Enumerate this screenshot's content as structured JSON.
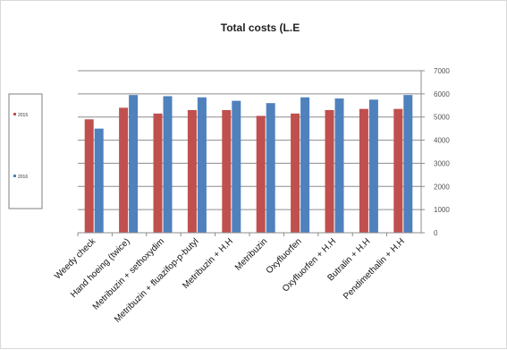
{
  "chart_data": {
    "type": "bar",
    "title": "Total costs (L.E",
    "categories": [
      "Weedy check",
      "Hand hoeing (twice)",
      "Metribuzin  + sethoxydim",
      "Metribuzin + fluazifop-p-butyl",
      "Metribuzin + H.H",
      "Metribuzin",
      "Oxyfluorfen",
      "Oxyfluorfen + H.H",
      "Butralin + H.H",
      "Pendimethalin + H.H"
    ],
    "series": [
      {
        "name": "2015",
        "color": "#c0504d",
        "values": [
          4900,
          5400,
          5150,
          5300,
          5300,
          5050,
          5150,
          5300,
          5350,
          5350
        ]
      },
      {
        "name": "2016",
        "color": "#4f81bd",
        "values": [
          4500,
          5950,
          5900,
          5850,
          5700,
          5600,
          5850,
          5800,
          5750,
          5950
        ]
      }
    ],
    "yticks": [
      "0",
      "1000",
      "2000",
      "3000",
      "4000",
      "5000",
      "6000",
      "7000"
    ],
    "ylim": [
      0,
      7000
    ],
    "grid": true,
    "legend_position": "left"
  }
}
